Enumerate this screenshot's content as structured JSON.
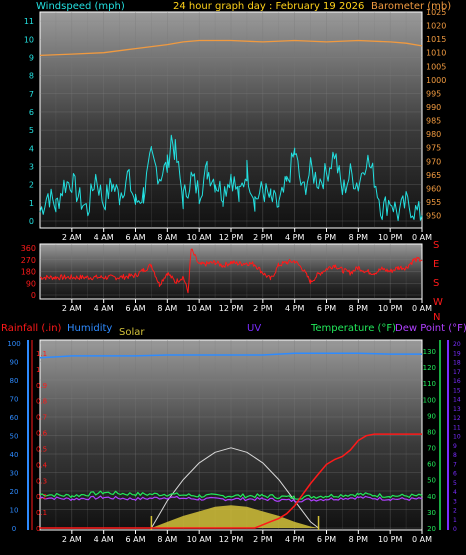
{
  "title": "24 hour graph day : February 19 2026",
  "colors": {
    "wind": "#23e0e0",
    "barometer": "#f09a40",
    "direction": "#ff1a1a",
    "rain": "#ff1a1a",
    "humidity": "#2e8bff",
    "solar": "#d4c23a",
    "uv": "#7a2cff",
    "temperature": "#22e85a",
    "dewpoint": "#b040ff",
    "title": "#ffd21a"
  },
  "time_axis": [
    "2 AM",
    "4 AM",
    "6 AM",
    "8 AM",
    "10 AM",
    "12 PM",
    "2 PM",
    "4 PM",
    "6 PM",
    "8 PM",
    "10 PM",
    "0 AM"
  ],
  "chart_data": [
    {
      "type": "line",
      "name": "wind-barometer",
      "title": "24 hour graph day : February 19 2026",
      "left_axis_label": "Windspeed (mph)",
      "right_axis_label": "Barometer (mb)",
      "left_ylim": [
        0,
        11.5
      ],
      "right_ylim": [
        948,
        1025
      ],
      "left_ticks": [
        "0",
        "1",
        "2",
        "3",
        "4",
        "5",
        "6",
        "7",
        "8",
        "9",
        "10",
        "11"
      ],
      "right_ticks": [
        "950",
        "955",
        "960",
        "965",
        "970",
        "975",
        "980",
        "985",
        "990",
        "995",
        "1000",
        "1005",
        "1010",
        "1015",
        "1020",
        "1025"
      ],
      "series": [
        {
          "name": "Windspeed",
          "x": [
            0,
            0.5,
            1,
            1.5,
            2,
            2.5,
            3,
            3.5,
            4,
            4.5,
            5,
            5.5,
            6,
            6.5,
            7,
            7.5,
            8,
            8.25,
            8.5,
            9,
            9.5,
            10,
            10.5,
            11,
            11.5,
            12,
            12.5,
            13,
            13.5,
            14,
            14.5,
            15,
            15.5,
            16,
            16.5,
            17,
            17.5,
            18,
            18.5,
            19,
            19.5,
            20,
            20.5,
            21,
            21.5,
            22,
            22.5,
            23,
            23.5,
            24
          ],
          "values": [
            0.5,
            1.5,
            0.8,
            2,
            2.2,
            1.2,
            0.6,
            2.5,
            1,
            2,
            1.4,
            2.5,
            1,
            1.5,
            3.5,
            2.5,
            3,
            4.6,
            3.8,
            1.2,
            2.4,
            1.6,
            2.8,
            2.2,
            1.5,
            2.6,
            1.3,
            2.8,
            1.2,
            1.7,
            1.2,
            0.8,
            2,
            3.8,
            1.6,
            2.8,
            2.2,
            2.6,
            3.8,
            1.6,
            2.6,
            2,
            3.5,
            2.4,
            0.6,
            1.2,
            0.4,
            1,
            0.6,
            0.3
          ]
        },
        {
          "name": "Barometer",
          "x": [
            0,
            2,
            4,
            6,
            8,
            9,
            10,
            12,
            14,
            16,
            18,
            20,
            22,
            23,
            24
          ],
          "values": [
            1009,
            1009.5,
            1010,
            1011.5,
            1013,
            1014,
            1014.5,
            1014.5,
            1014,
            1014.5,
            1014,
            1014.5,
            1014,
            1013.5,
            1012.5
          ]
        }
      ]
    },
    {
      "type": "line",
      "name": "wind-direction",
      "ylim": [
        0,
        360
      ],
      "left_ticks": [
        "0",
        "90",
        "180",
        "270",
        "360"
      ],
      "right_compass": [
        "N",
        "W",
        "S",
        "E",
        "S"
      ],
      "series": [
        {
          "name": "Wind direction",
          "x": [
            0,
            1,
            2,
            3,
            4,
            5,
            6,
            6.5,
            7,
            7.5,
            8,
            8.5,
            9,
            9.3,
            9.5,
            10,
            10.5,
            11,
            11.5,
            12,
            12.5,
            13,
            13.5,
            14,
            14.5,
            15,
            15.5,
            16,
            16.5,
            17,
            17.5,
            18,
            18.5,
            19,
            19.5,
            20,
            20.5,
            21,
            21.5,
            22,
            22.5,
            23,
            23.5,
            24
          ],
          "values": [
            135,
            135,
            135,
            135,
            135,
            135,
            150,
            190,
            230,
            80,
            170,
            100,
            140,
            20,
            350,
            230,
            240,
            250,
            225,
            250,
            240,
            245,
            235,
            170,
            120,
            230,
            250,
            260,
            200,
            100,
            160,
            200,
            230,
            190,
            170,
            210,
            180,
            170,
            200,
            180,
            210,
            210,
            270,
            270
          ]
        }
      ]
    },
    {
      "type": "line",
      "name": "rain-humidity-temperature",
      "left_axis_label": "Rainfall (.in)",
      "humidity_label": "Humidity",
      "solar_label": "Solar",
      "uv_label": "UV",
      "temperature_label": "Temperature (°F)",
      "dewpoint_label": "Dew Point (°F)",
      "humidity_ticks": [
        "0",
        "10",
        "20",
        "30",
        "40",
        "50",
        "60",
        "70",
        "80",
        "90",
        "100"
      ],
      "rain_ticks": [
        "0",
        "0.1",
        "0.2",
        "0.3",
        "0.4",
        "0.5",
        "0.6",
        "0.7",
        "0.8",
        "0.9",
        "1",
        "1.1"
      ],
      "temp_ticks": [
        "20",
        "30",
        "40",
        "50",
        "60",
        "70",
        "80",
        "90",
        "100",
        "110",
        "120",
        "130"
      ],
      "uv_ticks": [
        "0",
        "1",
        "2",
        "3",
        "4",
        "5",
        "6",
        "7",
        "8",
        "9",
        "10",
        "11",
        "12",
        "13",
        "14",
        "15",
        "16",
        "17",
        "18",
        "19",
        "20"
      ],
      "series": [
        {
          "name": "Humidity",
          "x": [
            0,
            1,
            2,
            4,
            6,
            8,
            10,
            12,
            14,
            16,
            18,
            20,
            22,
            24
          ],
          "values": [
            92,
            92.5,
            93,
            93,
            93,
            93.5,
            93.5,
            93.5,
            93.5,
            94.5,
            94.5,
            94.5,
            94,
            94
          ]
        },
        {
          "name": "Rainfall",
          "x": [
            0,
            13.5,
            14,
            14.5,
            15,
            15.5,
            16,
            16.5,
            17,
            17.5,
            18,
            18.5,
            19,
            19.5,
            20,
            20.5,
            21,
            23.5,
            24
          ],
          "values": [
            0,
            0,
            0.02,
            0.04,
            0.06,
            0.09,
            0.14,
            0.21,
            0.28,
            0.34,
            0.4,
            0.43,
            0.45,
            0.49,
            0.55,
            0.58,
            0.59,
            0.59,
            0.59
          ]
        },
        {
          "name": "Temperature",
          "x": [
            0,
            2,
            4,
            6,
            8,
            10,
            12,
            14,
            16,
            18,
            20,
            22,
            24
          ],
          "values": [
            41,
            40,
            42,
            41,
            41,
            40,
            40,
            40,
            39,
            40,
            41,
            40,
            40
          ]
        },
        {
          "name": "Dew Point",
          "x": [
            0,
            2,
            4,
            6,
            8,
            10,
            12,
            14,
            16,
            18,
            20,
            22,
            24
          ],
          "values": [
            39,
            38,
            39,
            38,
            39,
            38,
            38,
            38,
            37,
            38,
            39,
            38,
            38
          ]
        },
        {
          "name": "Solar",
          "x": [
            7,
            8,
            9,
            10,
            11,
            12,
            13,
            14,
            15,
            16,
            17,
            17.5
          ],
          "values": [
            0,
            4,
            8,
            11,
            14,
            15,
            14,
            11,
            8,
            4,
            1,
            0
          ]
        },
        {
          "name": "Solar max",
          "x": [
            7,
            8,
            9,
            10,
            11,
            12,
            13,
            14,
            15,
            16,
            17,
            17.5
          ],
          "values": [
            0,
            18,
            32,
            43,
            50,
            53,
            50,
            43,
            32,
            18,
            4,
            0
          ]
        }
      ]
    }
  ]
}
